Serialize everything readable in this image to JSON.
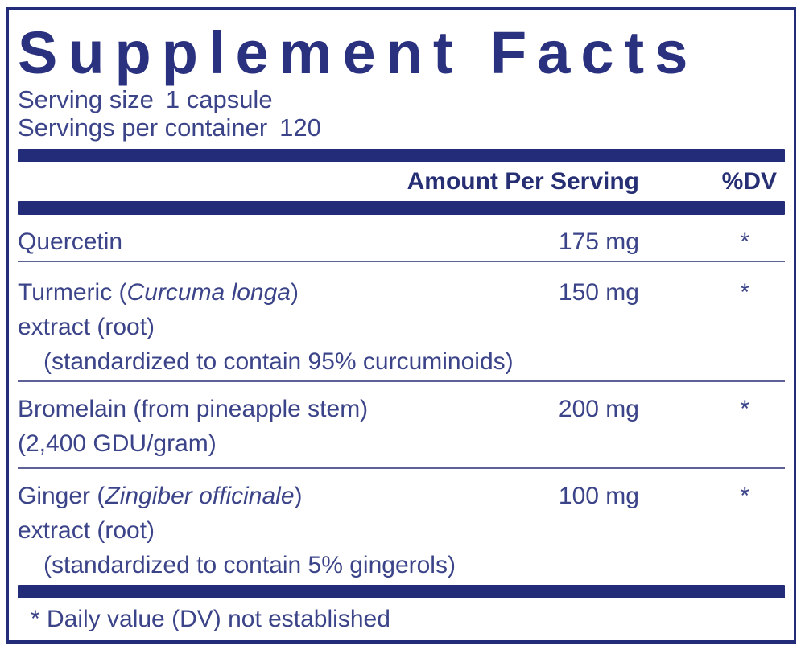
{
  "colors": {
    "navy": "#232c78",
    "title": "#2a317e",
    "body_text": "#3c4489",
    "bold_text": "#272f74",
    "separator": "#5d6195",
    "background": "#ffffff"
  },
  "label": {
    "title": "Supplement Facts",
    "serving": {
      "size_label": "Serving size",
      "size_value": "1 capsule",
      "container_label": "Servings per container",
      "container_value": "120"
    },
    "columns": {
      "amount": "Amount Per Serving",
      "dv": "%DV"
    },
    "rows": [
      {
        "line1_pre": "Quercetin",
        "amount": "175 mg",
        "dv": "*"
      },
      {
        "line1_pre": "Turmeric (",
        "line1_italic": "Curcuma longa",
        "line1_post": ")",
        "line2": "extract (root)",
        "line3": "(standardized to contain 95% curcuminoids)",
        "amount": "150 mg",
        "dv": "*"
      },
      {
        "line1_pre": "Bromelain (from pineapple stem)",
        "line2": "(2,400 GDU/gram)",
        "amount": "200 mg",
        "dv": "*"
      },
      {
        "line1_pre": "Ginger (",
        "line1_italic": "Zingiber officinale",
        "line1_post": ")",
        "line2": "extract (root)",
        "line3": "(standardized to contain 5% gingerols)",
        "amount": "100 mg",
        "dv": "*"
      }
    ],
    "footnote": "* Daily value (DV) not established"
  }
}
